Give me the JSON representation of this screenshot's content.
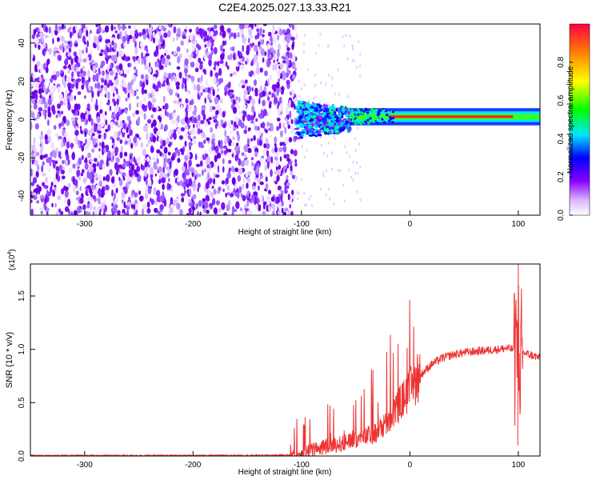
{
  "figure": {
    "title": "C2E4.2025.027.13.33.R21"
  },
  "chart_data": [
    {
      "type": "heatmap",
      "xlabel": "Height of straight line (km)",
      "ylabel": "Frequency (Hz)",
      "xlim": [
        -350,
        120
      ],
      "ylim": [
        -50,
        50
      ],
      "xticks": [
        -300,
        -200,
        -100,
        0,
        100
      ],
      "yticks": [
        -40,
        -20,
        0,
        20,
        40
      ],
      "colorbar": {
        "label": "Normalized spectral amplitude",
        "range": [
          0,
          1
        ],
        "ticks": [
          "0.0",
          "0.2",
          "0.4",
          "0.6",
          "0.8"
        ],
        "colormap": [
          "#ffffff",
          "#8800ff",
          "#0000ff",
          "#00e5ff",
          "#00ff00",
          "#ffff00",
          "#ff8800",
          "#ff0000"
        ]
      },
      "regions": [
        {
          "name": "noise",
          "x_range": [
            -350,
            -105
          ],
          "freq_range": [
            -50,
            50
          ],
          "amplitude": 0.1
        },
        {
          "name": "transition",
          "x_range": [
            -105,
            -55
          ],
          "freq_range": [
            -10,
            10
          ],
          "amplitude": 0.3
        },
        {
          "name": "signal",
          "x_range": [
            -55,
            120
          ],
          "center_freq": 1.5,
          "amplitude": 0.95
        }
      ]
    },
    {
      "type": "line",
      "xlabel": "Height of straight line (km)",
      "ylabel": "SNR (10 * v/v)",
      "yscale_label": "(x10",
      "yscale_exp": "4",
      "xlim": [
        -350,
        120
      ],
      "ylim": [
        0,
        1.8
      ],
      "xticks": [
        -300,
        -200,
        -100,
        0,
        100
      ],
      "yticks": [
        "0.0",
        "0.5",
        "1.0",
        "1.5"
      ],
      "color": "#ee3333",
      "series": [
        {
          "x": [
            -350,
            -300,
            -250,
            -200,
            -150,
            -110,
            -100,
            -90,
            -80,
            -70,
            -60,
            -50,
            -40,
            -30,
            -20,
            -10,
            0,
            10,
            20,
            30,
            40,
            50,
            60,
            70,
            80,
            90,
            95,
            98,
            100,
            102,
            105,
            110,
            120
          ],
          "y": [
            0.005,
            0.005,
            0.005,
            0.005,
            0.006,
            0.008,
            0.02,
            0.06,
            0.08,
            0.1,
            0.12,
            0.15,
            0.18,
            0.22,
            0.32,
            0.48,
            0.62,
            0.76,
            0.86,
            0.92,
            0.95,
            0.97,
            0.98,
            0.99,
            1.0,
            1.01,
            1.0,
            0.95,
            1.05,
            0.98,
            0.97,
            0.95,
            0.92
          ]
        }
      ]
    }
  ]
}
